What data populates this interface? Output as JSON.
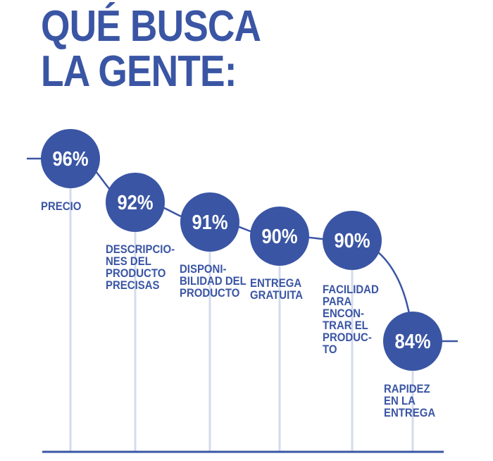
{
  "title_lines": [
    "QUÉ BUSCA",
    "LA GENTE:"
  ],
  "colors": {
    "primary": "#3a55a4",
    "stem": "#d3dbee",
    "text_on_circle": "#ffffff"
  },
  "chart_data": {
    "type": "line",
    "title": "QUÉ BUSCA LA GENTE:",
    "unit": "%",
    "categories": [
      "PRECIO",
      "DESCRIPCIONES DEL PRODUCTO PRECISAS",
      "DISPONIBILIDAD DEL PRODUCTO",
      "ENTREGA GRATUITA",
      "FACILIDAD PARA ENCONTRAR EL PRODUCTO",
      "RAPIDEZ EN LA ENTREGA"
    ],
    "values": [
      96,
      92,
      91,
      90,
      90,
      84
    ],
    "value_labels": [
      "96%",
      "92%",
      "91%",
      "90%",
      "90%",
      "84%"
    ],
    "labels_displayed": [
      "PRECIO",
      "DESCRIPCIO-\nNES DEL\nPRODUCTO\nPRECISAS",
      "DISPONI-\nBILIDAD DEL\nPRODUCTO",
      "ENTREGA\nGRATUITA",
      "FACILIDAD\nPARA\nENCON-\nTRAR EL\nPRODUC-\nTO",
      "RAPIDEZ\nEN LA\nENTREGA"
    ],
    "grid": false,
    "legend": "none"
  }
}
